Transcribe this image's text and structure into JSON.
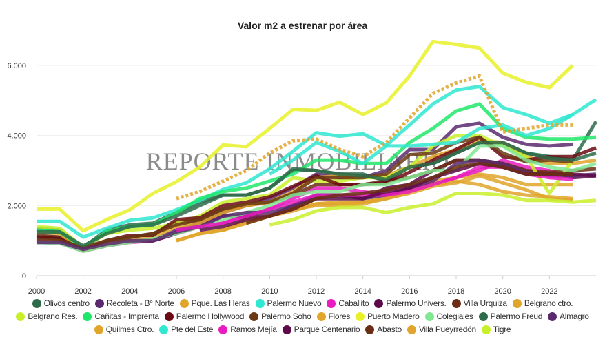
{
  "chart_data": {
    "type": "line",
    "title": "Valor m2 a estrenar por área",
    "watermark": "REPORTE INMOBILIARIO",
    "xlabel": "",
    "ylabel": "",
    "x": [
      2000,
      2001,
      2002,
      2003,
      2004,
      2005,
      2006,
      2007,
      2008,
      2009,
      2010,
      2011,
      2012,
      2013,
      2014,
      2015,
      2016,
      2017,
      2018,
      2019,
      2020,
      2021,
      2022,
      2023,
      2024
    ],
    "xlim": [
      2000,
      2024
    ],
    "ylim": [
      0,
      6800
    ],
    "x_ticks": [
      "2000",
      "2002",
      "2004",
      "2006",
      "2008",
      "2010",
      "2012",
      "2014",
      "2016",
      "2018",
      "2020",
      "2022"
    ],
    "y_ticks": [
      {
        "value": 0,
        "label": "0"
      },
      {
        "value": 2000,
        "label": "2.000"
      },
      {
        "value": 4000,
        "label": "4.000"
      },
      {
        "value": 6000,
        "label": "6.000"
      }
    ],
    "grid": true,
    "legend_position": "bottom",
    "series": [
      {
        "name": "Olivos centro",
        "color": "#2e6b4a",
        "values": [
          1350,
          1300,
          800,
          1300,
          1450,
          1500,
          1800,
          2100,
          2300,
          2300,
          2500,
          3000,
          3000,
          2900,
          2900,
          2700,
          3100,
          3200,
          3500,
          3800,
          3800,
          3500,
          3400,
          3300,
          4400
        ]
      },
      {
        "name": "Recoleta - B° Norte",
        "color": "#5a2a6e",
        "values": [
          950,
          950,
          750,
          900,
          1000,
          1000,
          1300,
          1500,
          1800,
          2000,
          2200,
          2500,
          2900,
          2800,
          2800,
          3000,
          3600,
          3600,
          4250,
          4350,
          3950,
          3750,
          3700,
          3750,
          null
        ]
      },
      {
        "name": "Pque. Las Heras",
        "color": "#e0a52a",
        "values": [
          null,
          null,
          null,
          null,
          null,
          null,
          1000,
          1200,
          1300,
          1500,
          1700,
          1900,
          2000,
          2000,
          2050,
          2200,
          2400,
          2700,
          2800,
          2900,
          2800,
          2600,
          2600,
          2600,
          null
        ]
      },
      {
        "name": "Palermo Nuevo",
        "color": "#2ee8d0",
        "values": [
          1550,
          1550,
          1100,
          1350,
          1580,
          1650,
          1880,
          2150,
          2460,
          2650,
          3050,
          3550,
          4080,
          3980,
          4050,
          3720,
          4300,
          4900,
          5300,
          5400,
          4800,
          4600,
          4350,
          4600,
          5030
        ]
      },
      {
        "name": "Caballito",
        "color": "#e81cc0",
        "values": [
          1000,
          950,
          700,
          850,
          950,
          1000,
          1200,
          1400,
          1500,
          1700,
          1900,
          2200,
          2500,
          2500,
          2400,
          2300,
          2500,
          2600,
          2800,
          3000,
          3300,
          3100,
          3000,
          2800,
          null
        ]
      },
      {
        "name": "Palermo Univers.",
        "color": "#5e0a4a",
        "values": [
          1100,
          1100,
          750,
          900,
          1000,
          1000,
          1200,
          1400,
          1700,
          1700,
          1700,
          2000,
          2300,
          2300,
          2200,
          2500,
          2600,
          3000,
          3300,
          3300,
          3200,
          3000,
          2900,
          2800,
          2850
        ]
      },
      {
        "name": "Villa Urquiza",
        "color": "#6b2e14",
        "values": [
          1150,
          1100,
          750,
          950,
          1100,
          1200,
          1500,
          1600,
          1900,
          2000,
          2100,
          2300,
          2600,
          2600,
          2600,
          2700,
          2800,
          3000,
          3300,
          3300,
          3200,
          3000,
          2950,
          3000,
          3050
        ]
      },
      {
        "name": "Belgrano ctro.",
        "color": "#e0a52a",
        "values": [
          1250,
          1200,
          700,
          900,
          1000,
          1100,
          1400,
          1500,
          1800,
          2000,
          2100,
          2400,
          2800,
          2850,
          2800,
          2850,
          3100,
          3400,
          3600,
          3850,
          3800,
          3400,
          3200,
          3200,
          3300
        ]
      },
      {
        "name": "Belgrano Res.",
        "color": "#c8f02a",
        "values": [
          1400,
          1350,
          800,
          1200,
          1300,
          1350,
          1500,
          1700,
          2100,
          2200,
          2300,
          2800,
          2700,
          2700,
          2800,
          2800,
          3100,
          3700,
          4000,
          4000,
          3700,
          3400,
          2350,
          3300,
          null
        ]
      },
      {
        "name": "Cañitas - Imprenta",
        "color": "#1ee86a",
        "values": [
          1300,
          1250,
          800,
          1250,
          1400,
          1450,
          1800,
          2200,
          2400,
          2500,
          2700,
          2900,
          3300,
          3300,
          3200,
          3200,
          3800,
          4200,
          4700,
          4900,
          4200,
          3950,
          3900,
          3900,
          3950
        ]
      },
      {
        "name": "Palermo Hollywood",
        "color": "#6b0a14",
        "values": [
          1100,
          1050,
          750,
          1000,
          1150,
          1150,
          1600,
          1650,
          2000,
          2100,
          2250,
          2550,
          2850,
          2600,
          2600,
          2650,
          2950,
          3300,
          3600,
          3950,
          3400,
          3300,
          3400,
          3400,
          3650
        ]
      },
      {
        "name": "Palermo Soho",
        "color": "#6b3a14",
        "values": [
          1050,
          1000,
          800,
          1000,
          1100,
          1200,
          1450,
          1600,
          1900,
          2050,
          2100,
          2350,
          2800,
          2800,
          2800,
          2900,
          3450,
          3500,
          3800,
          3950,
          3500,
          3250,
          3300,
          3250,
          null
        ]
      },
      {
        "name": "Flores",
        "color": "#e0a52a",
        "values": [
          null,
          null,
          null,
          null,
          null,
          null,
          null,
          null,
          1300,
          1500,
          1700,
          1850,
          2050,
          2100,
          2100,
          2200,
          2350,
          2550,
          2650,
          2850,
          2650,
          2450,
          2200,
          2150,
          null
        ]
      },
      {
        "name": "Puerto Madero",
        "color": "#e8f028",
        "values": [
          1900,
          1900,
          1280,
          1600,
          1880,
          2350,
          2680,
          3100,
          3730,
          3680,
          4200,
          4750,
          4720,
          4950,
          4600,
          4930,
          5700,
          6680,
          6600,
          6500,
          5780,
          5520,
          5370,
          6000,
          null
        ]
      },
      {
        "name": "Colegiales",
        "color": "#80e890",
        "values": [
          950,
          920,
          700,
          850,
          950,
          1050,
          1200,
          1400,
          1600,
          1800,
          2000,
          2300,
          2400,
          2400,
          2600,
          2600,
          2800,
          3000,
          3000,
          3700,
          3700,
          3300,
          3100,
          3000,
          3200
        ]
      },
      {
        "name": "Palermo Freud",
        "color": "#2e6b4a",
        "values": [
          1250,
          1250,
          850,
          1200,
          1400,
          1450,
          1700,
          2000,
          2300,
          2300,
          2500,
          3050,
          3000,
          2900,
          2850,
          2750,
          3100,
          3200,
          3500,
          3800,
          3800,
          3500,
          3350,
          3300,
          3500
        ]
      },
      {
        "name": "Almagro",
        "color": "#5a2a6e",
        "values": [
          950,
          950,
          750,
          900,
          1000,
          1000,
          1250,
          1400,
          1700,
          1800,
          1800,
          2000,
          2300,
          2300,
          2200,
          2300,
          2500,
          2700,
          3200,
          3300,
          3200,
          2950,
          2850,
          2850,
          2900
        ]
      },
      {
        "name": "Quilmes Ctro.",
        "color": "#e0a52a",
        "values": [
          null,
          null,
          null,
          null,
          null,
          null,
          1000,
          1200,
          1300,
          1600,
          1700,
          1900,
          2050,
          2050,
          2100,
          2200,
          2400,
          2600,
          2700,
          2600,
          2400,
          2300,
          2250,
          2200,
          null
        ]
      },
      {
        "name": "Pte del Este",
        "color": "#2ee8d0",
        "values": [
          null,
          null,
          null,
          null,
          null,
          null,
          null,
          null,
          null,
          null,
          2900,
          3300,
          3800,
          3550,
          3200,
          3700,
          3700,
          3750,
          3800,
          4200,
          4300,
          4000,
          4200,
          4600,
          null
        ]
      },
      {
        "name": "Ramos Mejía",
        "color": "#e81cc0",
        "values": [
          null,
          null,
          null,
          null,
          null,
          null,
          1300,
          1400,
          1500,
          1700,
          1900,
          2100,
          2300,
          2300,
          2300,
          2300,
          2400,
          2600,
          2800,
          3100,
          3100,
          2900,
          2800,
          2750,
          null
        ]
      },
      {
        "name": "Parque Centenario",
        "color": "#5e0a4a",
        "values": [
          null,
          null,
          null,
          null,
          null,
          null,
          null,
          1300,
          1400,
          1600,
          1700,
          1900,
          2200,
          2200,
          2200,
          2400,
          2500,
          2800,
          3000,
          3200,
          3100,
          2900,
          2900,
          2900,
          2850
        ]
      },
      {
        "name": "Abasto",
        "color": "#6b2e14",
        "values": [
          null,
          null,
          null,
          null,
          null,
          null,
          null,
          null,
          null,
          1500,
          1700,
          1900,
          2200,
          2300,
          2350,
          2450,
          2600,
          2800,
          3100,
          3200,
          3100,
          2900,
          2900,
          2900,
          null
        ]
      },
      {
        "name": "Villa Pueyrredón",
        "color": "#e0a52a",
        "dotted": true,
        "values": [
          null,
          null,
          null,
          null,
          null,
          null,
          2200,
          2400,
          2700,
          3000,
          3500,
          3850,
          3900,
          3600,
          3400,
          3800,
          4500,
          5200,
          5500,
          5700,
          4100,
          4200,
          4300,
          4300,
          null
        ]
      },
      {
        "name": "Tigre",
        "color": "#c8f02a",
        "values": [
          null,
          null,
          null,
          null,
          null,
          null,
          null,
          null,
          null,
          null,
          1450,
          1600,
          1850,
          1950,
          1950,
          1800,
          1950,
          2050,
          2350,
          2350,
          2300,
          2150,
          2150,
          2100,
          2150
        ]
      }
    ]
  }
}
